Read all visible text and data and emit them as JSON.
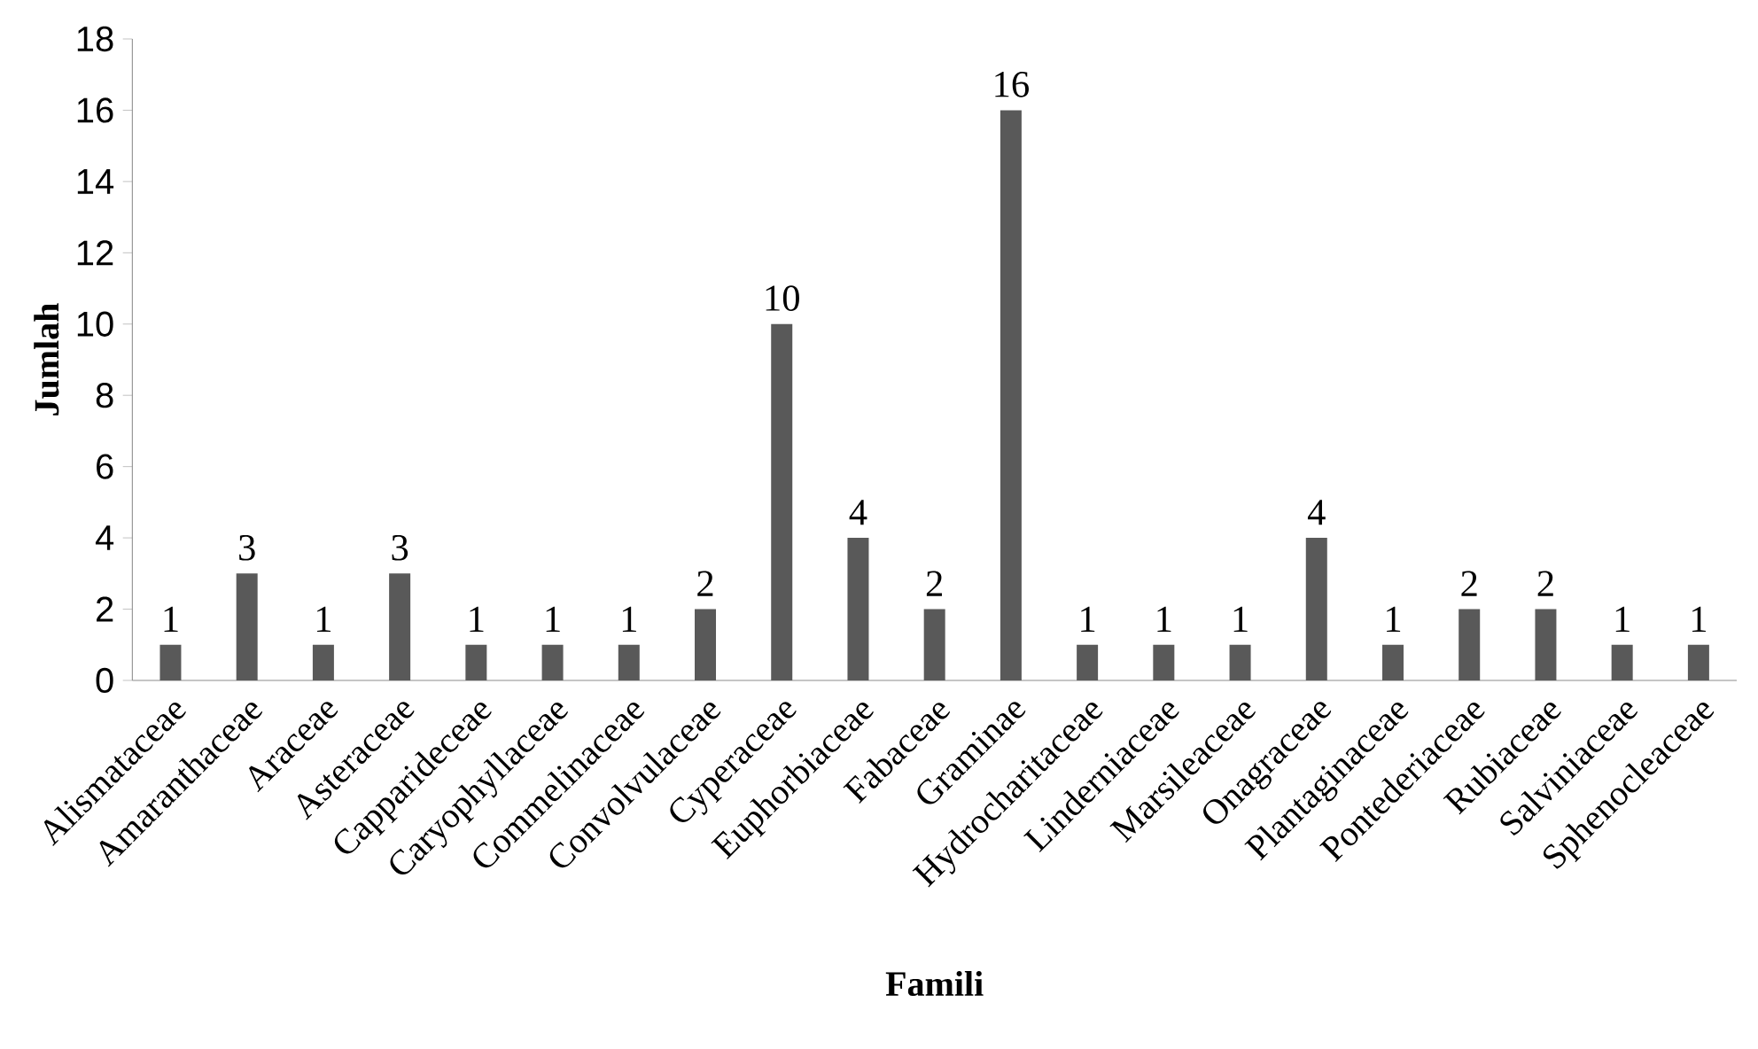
{
  "chart_data": {
    "type": "bar",
    "xlabel": "Famili",
    "ylabel": "Jumlah",
    "categories": [
      "Alismataceae",
      "Amaranthaceae",
      "Araceae",
      "Asteraceae",
      "Capparideceae",
      "Caryophyllaceae",
      "Commelinaceae",
      "Convolvulaceae",
      "Cyperaceae",
      "Euphorbiaceae",
      "Fabaceae",
      "Graminae",
      "Hydrocharitaceae",
      "Linderniaceae",
      "Marsileaceae",
      "Onagraceae",
      "Plantaginaceae",
      "Pontederiaceae",
      "Rubiaceae",
      "Salviniaceae",
      "Sphenocleaceae"
    ],
    "values": [
      1,
      3,
      1,
      3,
      1,
      1,
      1,
      2,
      10,
      4,
      2,
      16,
      1,
      1,
      1,
      4,
      1,
      2,
      2,
      1,
      1
    ],
    "color": "#595959",
    "ylim": [
      0,
      18
    ],
    "yticks": [
      0,
      2,
      4,
      6,
      8,
      10,
      12,
      14,
      16,
      18
    ],
    "grid": false,
    "data_labels": true
  }
}
